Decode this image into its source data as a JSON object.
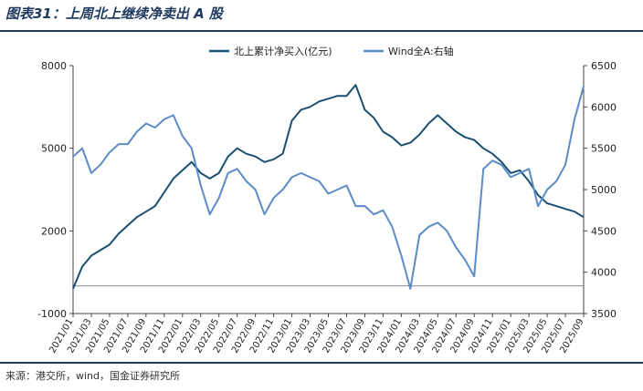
{
  "figure": {
    "title": "图表31：上周北上继续净卖出 A 股",
    "source": "来源：港交所，wind，国金证券研究所"
  },
  "chart_data": {
    "type": "line",
    "legend_position": "top",
    "grid": false,
    "x_tick_labels": [
      "2021/01",
      "2021/03",
      "2021/05",
      "2021/07",
      "2021/09",
      "2021/11",
      "2022/01",
      "2022/03",
      "2022/05",
      "2022/07",
      "2022/09",
      "2022/11",
      "2023/01",
      "2023/03",
      "2023/05",
      "2023/07",
      "2023/09",
      "2023/11",
      "2024/01",
      "2024/03",
      "2024/05",
      "2024/07",
      "2024/09",
      "2024/11",
      "2025/01",
      "2025/03",
      "2025/05",
      "2025/07",
      "2025/09"
    ],
    "x_range": [
      "2021/01",
      "2025/09"
    ],
    "y_left": {
      "min": -1000,
      "max": 8000,
      "ticks": [
        -1000,
        2000,
        5000,
        8000
      ]
    },
    "y_right": {
      "min": 3500,
      "max": 6500,
      "ticks": [
        3500,
        4000,
        4500,
        5000,
        5500,
        6000,
        6500
      ]
    },
    "series": [
      {
        "name": "北上累计净买入(亿元)",
        "axis": "left",
        "color": "#1b4f72",
        "points": [
          [
            "2021/01",
            -100
          ],
          [
            "2021/02",
            700
          ],
          [
            "2021/03",
            1100
          ],
          [
            "2021/04",
            1300
          ],
          [
            "2021/05",
            1500
          ],
          [
            "2021/06",
            1900
          ],
          [
            "2021/07",
            2200
          ],
          [
            "2021/08",
            2500
          ],
          [
            "2021/09",
            2700
          ],
          [
            "2021/10",
            2900
          ],
          [
            "2021/11",
            3400
          ],
          [
            "2021/12",
            3900
          ],
          [
            "2022/01",
            4200
          ],
          [
            "2022/02",
            4500
          ],
          [
            "2022/03",
            4100
          ],
          [
            "2022/04",
            3900
          ],
          [
            "2022/05",
            4100
          ],
          [
            "2022/06",
            4700
          ],
          [
            "2022/07",
            5000
          ],
          [
            "2022/08",
            4800
          ],
          [
            "2022/09",
            4700
          ],
          [
            "2022/10",
            4500
          ],
          [
            "2022/11",
            4600
          ],
          [
            "2022/12",
            4800
          ],
          [
            "2023/01",
            6000
          ],
          [
            "2023/02",
            6400
          ],
          [
            "2023/03",
            6500
          ],
          [
            "2023/04",
            6700
          ],
          [
            "2023/05",
            6800
          ],
          [
            "2023/06",
            6900
          ],
          [
            "2023/07",
            6900
          ],
          [
            "2023/08",
            7300
          ],
          [
            "2023/09",
            6400
          ],
          [
            "2023/10",
            6100
          ],
          [
            "2023/11",
            5600
          ],
          [
            "2023/12",
            5400
          ],
          [
            "2024/01",
            5100
          ],
          [
            "2024/02",
            5200
          ],
          [
            "2024/03",
            5500
          ],
          [
            "2024/04",
            5900
          ],
          [
            "2024/05",
            6200
          ],
          [
            "2024/06",
            5900
          ],
          [
            "2024/07",
            5600
          ],
          [
            "2024/08",
            5400
          ],
          [
            "2024/09",
            5300
          ],
          [
            "2024/10",
            5000
          ],
          [
            "2024/11",
            4800
          ],
          [
            "2024/12",
            4500
          ],
          [
            "2025/01",
            4100
          ],
          [
            "2025/02",
            4200
          ],
          [
            "2025/03",
            3800
          ],
          [
            "2025/04",
            3300
          ],
          [
            "2025/05",
            3000
          ],
          [
            "2025/06",
            2900
          ],
          [
            "2025/07",
            2800
          ],
          [
            "2025/08",
            2700
          ],
          [
            "2025/09",
            2500
          ]
        ]
      },
      {
        "name": "Wind全A:右轴",
        "axis": "right",
        "color": "#5b8cc8",
        "points": [
          [
            "2021/01",
            5400
          ],
          [
            "2021/02",
            5500
          ],
          [
            "2021/03",
            5200
          ],
          [
            "2021/04",
            5300
          ],
          [
            "2021/05",
            5450
          ],
          [
            "2021/06",
            5550
          ],
          [
            "2021/07",
            5550
          ],
          [
            "2021/08",
            5700
          ],
          [
            "2021/09",
            5800
          ],
          [
            "2021/10",
            5750
          ],
          [
            "2021/11",
            5850
          ],
          [
            "2021/12",
            5900
          ],
          [
            "2022/01",
            5650
          ],
          [
            "2022/02",
            5500
          ],
          [
            "2022/03",
            5050
          ],
          [
            "2022/04",
            4700
          ],
          [
            "2022/05",
            4900
          ],
          [
            "2022/06",
            5200
          ],
          [
            "2022/07",
            5250
          ],
          [
            "2022/08",
            5100
          ],
          [
            "2022/09",
            5000
          ],
          [
            "2022/10",
            4700
          ],
          [
            "2022/11",
            4900
          ],
          [
            "2022/12",
            5000
          ],
          [
            "2023/01",
            5150
          ],
          [
            "2023/02",
            5200
          ],
          [
            "2023/03",
            5150
          ],
          [
            "2023/04",
            5100
          ],
          [
            "2023/05",
            4950
          ],
          [
            "2023/06",
            5000
          ],
          [
            "2023/07",
            5050
          ],
          [
            "2023/08",
            4800
          ],
          [
            "2023/09",
            4800
          ],
          [
            "2023/10",
            4700
          ],
          [
            "2023/11",
            4750
          ],
          [
            "2023/12",
            4550
          ],
          [
            "2024/01",
            4200
          ],
          [
            "2024/02",
            3800
          ],
          [
            "2024/03",
            4450
          ],
          [
            "2024/04",
            4550
          ],
          [
            "2024/05",
            4600
          ],
          [
            "2024/06",
            4500
          ],
          [
            "2024/07",
            4300
          ],
          [
            "2024/08",
            4150
          ],
          [
            "2024/09",
            3950
          ],
          [
            "2024/10",
            5250
          ],
          [
            "2024/11",
            5350
          ],
          [
            "2024/12",
            5300
          ],
          [
            "2025/01",
            5150
          ],
          [
            "2025/02",
            5200
          ],
          [
            "2025/03",
            5250
          ],
          [
            "2025/04",
            4800
          ],
          [
            "2025/05",
            5000
          ],
          [
            "2025/06",
            5100
          ],
          [
            "2025/07",
            5300
          ],
          [
            "2025/08",
            5850
          ],
          [
            "2025/09",
            6250
          ]
        ]
      }
    ]
  }
}
